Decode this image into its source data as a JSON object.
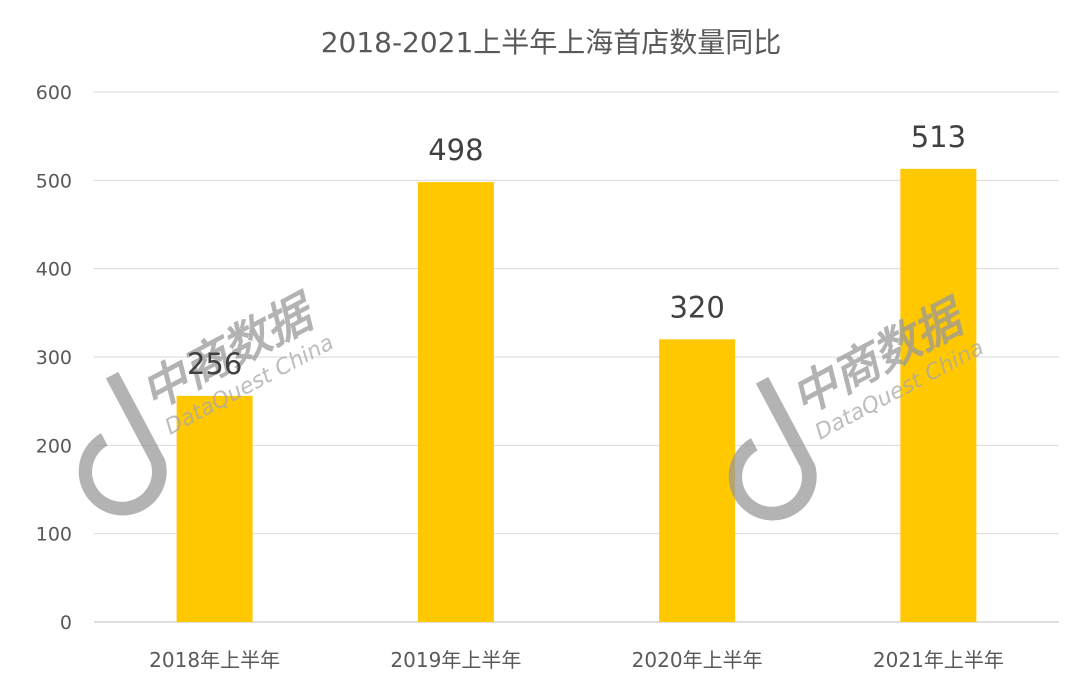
{
  "chart_data": {
    "type": "bar",
    "title": "2018-2021上半年上海首店数量同比",
    "categories": [
      "2018年上半年",
      "2019年上半年",
      "2020年上半年",
      "2021年上半年"
    ],
    "values": [
      256,
      498,
      320,
      513
    ],
    "data_labels": [
      "256",
      "498",
      "320",
      "513"
    ],
    "ylim": [
      0,
      600
    ],
    "yticks": [
      0,
      100,
      200,
      300,
      400,
      500,
      600
    ],
    "xlabel": "",
    "ylabel": "",
    "grid": true,
    "legend": "none",
    "bar_color": "#FFC800"
  },
  "watermark": {
    "cn_text": "中商数据",
    "en_text": "DataQuest China",
    "color": "#9a9a9a"
  }
}
